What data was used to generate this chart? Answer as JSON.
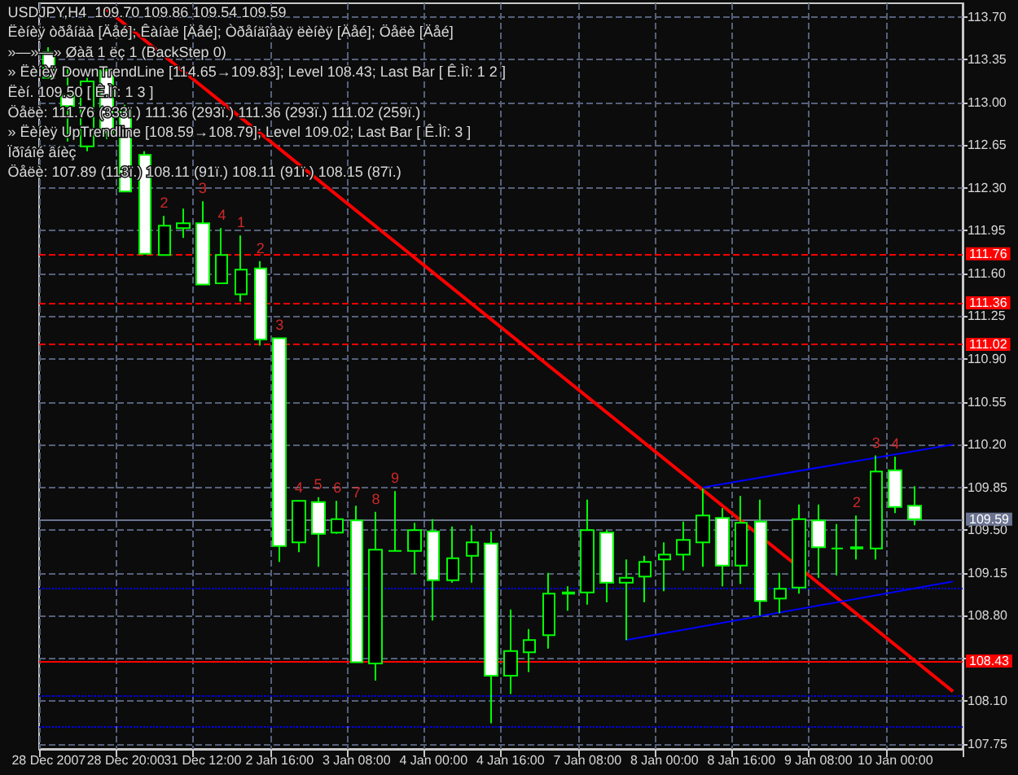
{
  "chart_data": {
    "type": "candlestick",
    "title": "USDJPY,H4  109.70 109.86 109.54 109.59",
    "categories": [
      "28 Dec 2007",
      null,
      null,
      null,
      "28 Dec 20:00",
      null,
      null,
      null,
      "31 Dec 12:00",
      null,
      null,
      null,
      "2 Jan 16:00",
      null,
      null,
      null,
      "3 Jan 08:00",
      null,
      null,
      null,
      "4 Jan 00:00",
      null,
      null,
      null,
      "4 Jan 16:00",
      null,
      null,
      null,
      "7 Jan 08:00",
      null,
      null,
      null,
      "8 Jan 00:00",
      null,
      null,
      null,
      "8 Jan 16:00",
      null,
      null,
      null,
      "9 Jan 08:00",
      null,
      null,
      null,
      "10 Jan 00:00",
      null,
      null,
      null
    ],
    "series": [
      {
        "color": "#00ff00",
        "ohlc": [
          [
            113.41,
            113.45,
            113.2,
            113.2
          ],
          [
            113.06,
            113.28,
            112.68,
            112.97
          ],
          [
            112.64,
            113.2,
            112.6,
            113.17
          ],
          [
            113.26,
            113.3,
            112.7,
            112.75
          ],
          [
            112.93,
            112.98,
            112.27,
            112.27
          ],
          [
            112.57,
            112.6,
            111.76,
            111.76
          ],
          [
            111.75,
            112.07,
            111.75,
            111.99
          ],
          [
            111.97,
            112.13,
            111.89,
            112.01
          ],
          [
            112.01,
            112.19,
            111.51,
            111.51
          ],
          [
            111.52,
            111.97,
            111.52,
            111.75
          ],
          [
            111.43,
            111.91,
            111.37,
            111.63
          ],
          [
            111.64,
            111.7,
            111.01,
            111.06
          ],
          [
            111.07,
            111.07,
            109.24,
            109.37
          ],
          [
            109.4,
            109.74,
            109.32,
            109.74
          ],
          [
            109.73,
            109.77,
            109.2,
            109.47
          ],
          [
            109.48,
            109.74,
            109.47,
            109.59
          ],
          [
            109.58,
            109.7,
            108.42,
            108.42
          ],
          [
            108.41,
            109.65,
            108.27,
            109.34
          ],
          [
            109.33,
            109.82,
            109.33,
            109.33
          ],
          [
            109.33,
            109.56,
            109.14,
            109.5
          ],
          [
            109.49,
            109.59,
            108.76,
            109.09
          ],
          [
            109.09,
            109.53,
            109.07,
            109.27
          ],
          [
            109.29,
            109.54,
            109.07,
            109.4
          ],
          [
            109.39,
            109.49,
            107.92,
            108.31
          ],
          [
            108.31,
            108.85,
            108.16,
            108.51
          ],
          [
            108.5,
            108.69,
            108.34,
            108.6
          ],
          [
            108.64,
            109.15,
            108.53,
            108.98
          ],
          [
            108.98,
            109.04,
            108.84,
            108.99
          ],
          [
            108.99,
            109.75,
            108.89,
            109.5
          ],
          [
            109.48,
            109.5,
            108.91,
            109.07
          ],
          [
            109.07,
            109.26,
            108.6,
            109.11
          ],
          [
            109.12,
            109.29,
            108.91,
            109.24
          ],
          [
            109.26,
            109.4,
            109.0,
            109.3
          ],
          [
            109.3,
            109.57,
            109.17,
            109.42
          ],
          [
            109.4,
            109.84,
            109.2,
            109.62
          ],
          [
            109.6,
            109.68,
            109.04,
            109.21
          ],
          [
            109.21,
            109.78,
            109.06,
            109.56
          ],
          [
            109.57,
            109.75,
            108.8,
            108.92
          ],
          [
            108.94,
            109.15,
            108.82,
            109.02
          ],
          [
            109.03,
            109.71,
            108.98,
            109.59
          ],
          [
            109.58,
            109.71,
            109.11,
            109.36
          ],
          [
            109.35,
            109.55,
            109.13,
            109.35
          ],
          [
            109.35,
            109.62,
            109.26,
            109.36
          ],
          [
            109.35,
            110.11,
            109.26,
            109.98
          ],
          [
            109.99,
            110.1,
            109.64,
            109.69
          ],
          [
            109.7,
            109.86,
            109.54,
            109.59
          ],
          null,
          null
        ],
        "colors": [
          "#ffffff",
          "#ffffff",
          "#000000",
          "#ffffff",
          "#ffffff",
          "#ffffff",
          "#000000",
          "#000000",
          "#ffffff",
          "#000000",
          "#000000",
          "#ffffff",
          "#ffffff",
          "#000000",
          "#ffffff",
          "#000000",
          "#ffffff",
          "#000000",
          "#00ff00",
          "#000000",
          "#ffffff",
          "#000000",
          "#000000",
          "#ffffff",
          "#000000",
          "#000000",
          "#000000",
          "#000000",
          "#000000",
          "#ffffff",
          "#000000",
          "#000000",
          "#000000",
          "#000000",
          "#000000",
          "#ffffff",
          "#000000",
          "#ffffff",
          "#000000",
          "#000000",
          "#ffffff",
          "#00ff00",
          "#000000",
          "#000000",
          "#ffffff",
          "#ffffff",
          null,
          null
        ],
        "value_labels": [
          null,
          null,
          null,
          null,
          null,
          null,
          "2",
          null,
          "3",
          "4",
          "1",
          "2",
          "3",
          "4",
          "5",
          "6",
          "7",
          "8",
          "9",
          null,
          null,
          null,
          null,
          null,
          null,
          null,
          null,
          null,
          null,
          null,
          null,
          null,
          null,
          null,
          null,
          null,
          null,
          null,
          null,
          null,
          null,
          null,
          "2",
          "3",
          "4",
          null,
          null,
          null
        ]
      },
      {
        "type": "line",
        "color": "#ff0000",
        "values": [
          null,
          null,
          null,
          113.76,
          null,
          null,
          null,
          null,
          null,
          null,
          null,
          null,
          null,
          null,
          null,
          null,
          null,
          null,
          null,
          null,
          null,
          null,
          null,
          null,
          null,
          null,
          null,
          null,
          null,
          null,
          null,
          null,
          null,
          null,
          null,
          null,
          null,
          null,
          null,
          null,
          null,
          null,
          null,
          null,
          null,
          null,
          null,
          108.18
        ]
      },
      {
        "type": "line",
        "color": "#0000ff",
        "values": [
          null,
          null,
          null,
          null,
          null,
          null,
          null,
          null,
          null,
          null,
          null,
          null,
          null,
          null,
          null,
          null,
          null,
          null,
          null,
          null,
          null,
          null,
          null,
          null,
          null,
          null,
          null,
          null,
          null,
          null,
          108.6,
          null,
          null,
          null,
          null,
          null,
          null,
          null,
          null,
          null,
          null,
          null,
          null,
          null,
          null,
          null,
          null,
          109.08
        ]
      },
      {
        "type": "line",
        "color": "#0000ff",
        "values": [
          null,
          null,
          null,
          null,
          null,
          null,
          null,
          null,
          null,
          null,
          null,
          null,
          null,
          null,
          null,
          null,
          null,
          null,
          null,
          null,
          null,
          null,
          null,
          null,
          null,
          null,
          null,
          null,
          null,
          null,
          null,
          null,
          null,
          null,
          109.85,
          null,
          null,
          null,
          null,
          null,
          null,
          null,
          null,
          null,
          null,
          null,
          null,
          110.2
        ]
      }
    ],
    "ylim": [
      107.71,
      113.81
    ],
    "yticks": [
      107.75,
      {
        "value": 108.1,
        "label": "108.10"
      },
      {
        "value": 108.45,
        "label": null
      },
      {
        "value": 108.8,
        "label": "108.80"
      },
      109.15,
      {
        "value": 109.5,
        "label": "109.50"
      },
      109.85,
      {
        "value": 110.2,
        "label": "110.20"
      },
      110.55,
      {
        "value": 110.9,
        "label": "110.90"
      },
      111.25,
      {
        "value": 111.6,
        "label": "111.60"
      },
      111.95,
      {
        "value": 112.3,
        "label": "112.30"
      },
      112.65,
      {
        "value": 113.0,
        "label": "113.00"
      },
      113.35,
      {
        "value": 113.7,
        "label": "113.70"
      }
    ],
    "grid": true,
    "ref_lines": [
      {
        "axis": "y",
        "value": 111.76,
        "label": "111.76",
        "color": "#ff0000",
        "line_style": "dashed"
      },
      {
        "axis": "y",
        "value": 111.36,
        "label": "111.36",
        "color": "#ff0000",
        "line_style": "dashed"
      },
      {
        "axis": "y",
        "value": 111.02,
        "label": "111.02",
        "color": "#ff0000",
        "line_style": "dashed"
      },
      {
        "axis": "y",
        "value": 108.43,
        "label": "108.43",
        "color": "#ff0000",
        "line_style": "solid"
      },
      {
        "axis": "y",
        "value": 109.59,
        "label": "109.59",
        "color": "#6a7390",
        "line_style": "solid"
      },
      {
        "axis": "y",
        "value": 109.02,
        "label": null,
        "color": "#0000ff",
        "line_style": "dotted"
      },
      {
        "axis": "y",
        "value": 108.15,
        "label": null,
        "color": "#0000ff",
        "line_style": "dotted"
      },
      {
        "axis": "y",
        "value": 107.89,
        "label": null,
        "color": "#0000ff",
        "line_style": "dotted"
      }
    ],
    "annotations": [
      "Ëèíèÿ òðåíäà [Äåé]; Êàíàë [Äåé]; Òðåíäîâàÿ ëèíèÿ [Äåé]; Öåëè [Äåé]",
      "»—»—» Øàã 1 ëç 1 (BackStep 0)",
      "» Ëèíèÿ DownTrendLine [114.65→109.83]; Level 108.43; Last Bar [ Ê.Ìî: 1 2 ]",
      "Ëèí. 109.50 [ Ê.Ìî: 1 3 ]",
      "Öåëè: 111.76 (333ï.) 111.36 (293ï.) 111.36 (293ï.) 111.02 (259ï.)",
      "» Ëèíèÿ UpTrendline [108.59→108.79]; Level 109.02; Last Bar [ Ê.Ìî: 3 ]",
      "Ïðîáîé âíèç",
      "Öåëè: 107.89 (113ï.) 108.11 (91ï.) 108.11 (91ï.) 108.15 (87ï.)"
    ]
  }
}
